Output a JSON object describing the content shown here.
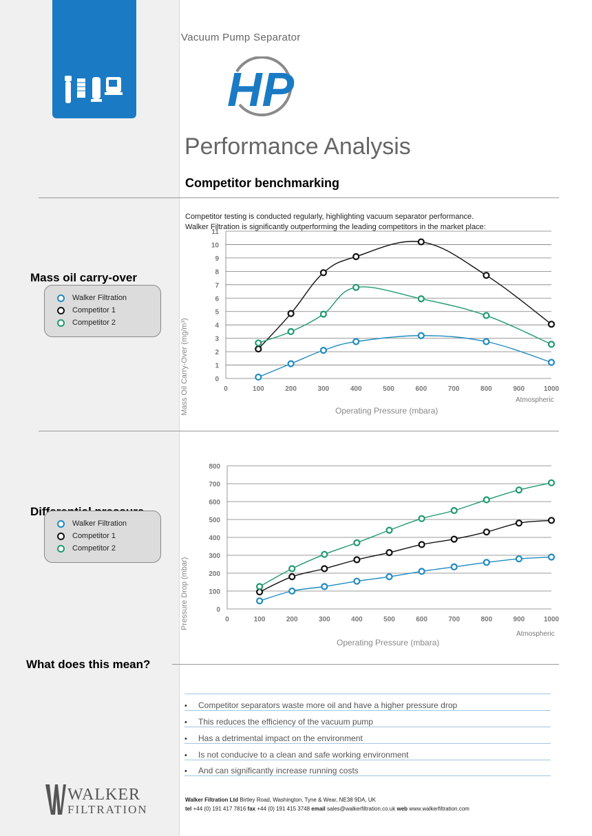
{
  "header": {
    "subtitle": "Vacuum Pump Separator",
    "logo_text": "HP",
    "title": "Performance Analysis",
    "section_title": "Competitor benchmarking",
    "intro_line1": "Competitor testing is conducted regularly, highlighting vacuum separator performance.",
    "intro_line2": "Walker Filtration is significantly outperforming the leading competitors in the market place:"
  },
  "colors": {
    "walker": "#1f8ac0",
    "competitor1": "#111111",
    "competitor2": "#1f9a6e",
    "accent": "#1a7bc4"
  },
  "legend": {
    "walker": "Walker Filtration",
    "competitor1": "Competitor 1",
    "competitor2": "Competitor 2"
  },
  "mass_heading": "Mass oil carry-over",
  "diff_heading": "Differential pressure",
  "meaning_heading": "What does this mean?",
  "chart_data": [
    {
      "type": "line",
      "xlabel": "Operating Pressure (mbara)",
      "ylabel": "Mass Oil Carry-Over (mg/m³)",
      "x_end_label": "Atmospheric",
      "xlim": [
        0,
        1000
      ],
      "ylim": [
        0,
        11
      ],
      "x_ticks": [
        0,
        100,
        200,
        300,
        400,
        500,
        600,
        700,
        800,
        900,
        1000
      ],
      "y_ticks": [
        0,
        1,
        2,
        3,
        4,
        5,
        6,
        7,
        8,
        9,
        10,
        11
      ],
      "grid": true,
      "x": [
        100,
        200,
        300,
        400,
        600,
        800,
        1000
      ],
      "series": [
        {
          "name": "Walker Filtration",
          "values": [
            0.1,
            1.1,
            2.1,
            2.75,
            3.2,
            2.75,
            1.2
          ]
        },
        {
          "name": "Competitor 1",
          "values": [
            2.2,
            4.85,
            7.9,
            9.1,
            10.2,
            7.7,
            4.05
          ]
        },
        {
          "name": "Competitor 2",
          "values": [
            2.65,
            3.5,
            4.8,
            6.8,
            5.95,
            4.7,
            2.55
          ]
        }
      ]
    },
    {
      "type": "line",
      "xlabel": "Operating Pressure (mbara)",
      "ylabel": "Pressure Drop (mbar)",
      "x_end_label": "Atmospheric",
      "xlim": [
        0,
        1000
      ],
      "ylim": [
        0,
        800
      ],
      "x_ticks": [
        0,
        100,
        200,
        300,
        400,
        500,
        600,
        700,
        800,
        900,
        1000
      ],
      "y_ticks": [
        0,
        100,
        200,
        300,
        400,
        500,
        600,
        700,
        800
      ],
      "grid": true,
      "x": [
        100,
        200,
        300,
        400,
        500,
        600,
        700,
        800,
        900,
        1000
      ],
      "series": [
        {
          "name": "Walker Filtration",
          "values": [
            45,
            100,
            125,
            155,
            180,
            210,
            235,
            260,
            280,
            290
          ]
        },
        {
          "name": "Competitor 1",
          "values": [
            95,
            180,
            225,
            275,
            315,
            360,
            390,
            430,
            480,
            495
          ]
        },
        {
          "name": "Competitor 2",
          "values": [
            125,
            225,
            305,
            370,
            440,
            505,
            550,
            610,
            665,
            705
          ]
        }
      ]
    }
  ],
  "bullets": [
    "Competitor separators waste more oil and have a higher pressure drop",
    "This reduces the efficiency of the vacuum pump",
    "Has a detrimental impact on the environment",
    "Is not conducive to a clean and safe working environment",
    "And can significantly increase running costs"
  ],
  "bullet_mark": "•",
  "brand": {
    "line1": "WALKER",
    "line2": "FILTRATION"
  },
  "footer": {
    "company": "Walker Filtration Ltd",
    "address": " Birtley Road, Washington, Tyne & Wear, NE38 9DA, UK",
    "tel_label": "tel",
    "tel": " +44 (0) 191 417 7816 ",
    "fax_label": "fax",
    "fax": " +44 (0) 191 415 3748 ",
    "email_label": "email",
    "email": " sales@walkerfiltration.co.uk ",
    "web_label": "web",
    "web": " www.walkerfiltration.com"
  }
}
